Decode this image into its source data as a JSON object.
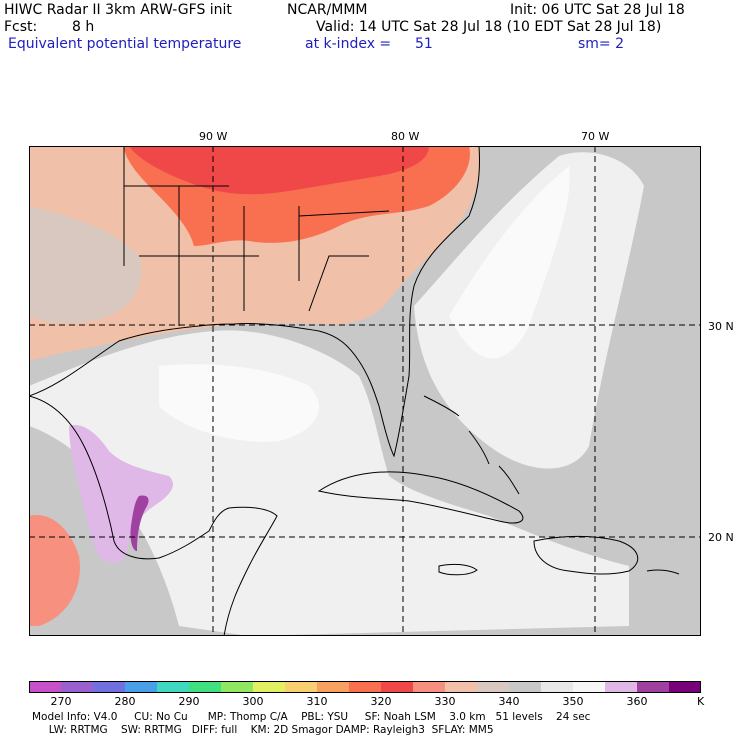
{
  "header": {
    "title_left": "HIWC Radar II 3km ARW-GFS init",
    "title_center": "NCAR/MMM",
    "init": "Init: 06 UTC Sat 28 Jul 18",
    "fcst_label": "Fcst:",
    "fcst_value": "8 h",
    "valid": "Valid: 14 UTC Sat 28 Jul 18 (10 EDT Sat 28 Jul 18)",
    "field": "Equivalent potential temperature",
    "level": "at k-index =",
    "level_value": "51",
    "smooth": "sm= 2"
  },
  "map": {
    "lon_labels": [
      "90 W",
      "80 W",
      "70 W"
    ],
    "lat_labels": [
      "30 N",
      "20 N"
    ],
    "colors": {
      "gridline": "#000000",
      "coast": "#000000"
    }
  },
  "colorbar": {
    "unit": "K",
    "ticks": [
      "270",
      "280",
      "290",
      "300",
      "310",
      "320",
      "330",
      "340",
      "350",
      "360"
    ],
    "colors": [
      "#c850c8",
      "#9a60d0",
      "#7070e0",
      "#4aa0e8",
      "#40d8c0",
      "#40e080",
      "#90e860",
      "#e0f060",
      "#f8d070",
      "#f8a060",
      "#f87050",
      "#f04848",
      "#f89080",
      "#f0c0a8",
      "#d8c8c0",
      "#c8c8c8",
      "#e8e8e8",
      "#f6f6f6",
      "#e0b8e8",
      "#a040a0",
      "#780078"
    ]
  },
  "footer": {
    "line1": "Model Info: V4.0     CU: No Cu      MP: Thomp C/A    PBL: YSU     SF: Noah LSM    3.0 km   51 levels    24 sec",
    "line2": "     LW: RRTMG    SW: RRTMG   DIFF: full    KM: 2D Smagor DAMP: Rayleigh3  SFLAY: MM5"
  }
}
